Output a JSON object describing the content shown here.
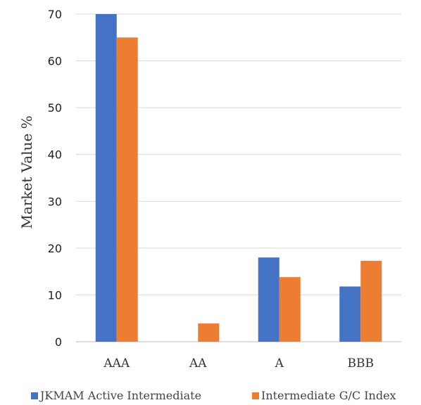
{
  "chart_data": {
    "type": "bar",
    "title": "",
    "xlabel": "",
    "ylabel": "Market Value %",
    "ylim": [
      0,
      70
    ],
    "yticks": [
      0,
      10,
      20,
      30,
      40,
      50,
      60,
      70
    ],
    "grid": true,
    "legend_position": "bottom",
    "categories": [
      "AAA",
      "AA",
      "A",
      "BBB"
    ],
    "series": [
      {
        "name": "JKMAM Active Intermediate",
        "color": "#4472C4",
        "values": [
          70,
          0,
          18,
          11.8
        ]
      },
      {
        "name": "Intermediate G/C Index",
        "color": "#ED7D31",
        "values": [
          65,
          3.9,
          13.8,
          17.3
        ]
      }
    ]
  }
}
